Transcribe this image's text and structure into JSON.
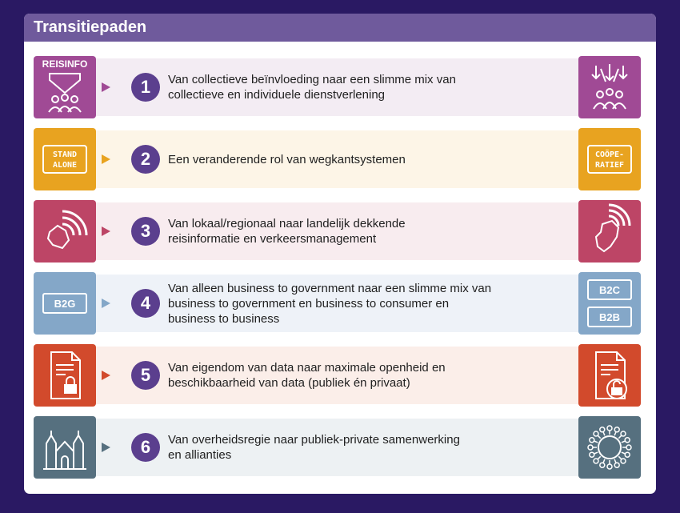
{
  "title": "Transitiepaden",
  "rows": [
    {
      "number": "1",
      "text": "Van collectieve beïnvloeding naar een slimme mix van\ncollectieve en individuele dienstverlening",
      "left_label": "REISINFO",
      "right_label": "",
      "tile_color": "#a04a95",
      "band_color": "#f3ecf3",
      "left_icon": "crowd-down-arrow-icon",
      "right_icon": "crowd-multi-arrow-icon"
    },
    {
      "number": "2",
      "text": "Een veranderende rol van wegkantsystemen",
      "left_label": "STAND\nALONE",
      "right_label": "COÖPE-\nRATIEF",
      "tile_color": "#e8a320",
      "band_color": "#fdf5e7",
      "left_icon": "stand-alone-sign-icon",
      "right_icon": "cooperatief-sign-icon"
    },
    {
      "number": "3",
      "text": "Van lokaal/regionaal naar landelijk dekkende\nreisinformatie en verkeersmanagement",
      "left_label": "",
      "right_label": "",
      "tile_color": "#bd4566",
      "band_color": "#f8ecef",
      "left_icon": "region-signal-icon",
      "right_icon": "national-signal-icon"
    },
    {
      "number": "4",
      "text": "Van alleen business to government naar een slimme mix van\nbusiness to government en business to consumer en\nbusiness to business",
      "left_label": "B2G",
      "right_label_top": "B2C",
      "right_label_bottom": "B2B",
      "tile_color": "#84a7c8",
      "band_color": "#eef2f8",
      "left_icon": "b2g-badge-icon",
      "right_icon": "b2c-b2b-badge-icon"
    },
    {
      "number": "5",
      "text": "Van eigendom van data naar maximale openheid en\nbeschikbaarheid van data (publiek én privaat)",
      "left_label": "",
      "right_label": "",
      "tile_color": "#d24a2c",
      "band_color": "#fbeee9",
      "left_icon": "document-lock-icon",
      "right_icon": "document-unlock-icon"
    },
    {
      "number": "6",
      "text": "Van overheidsregie naar publiek-private samenwerking\nen allianties",
      "left_label": "",
      "right_label": "",
      "tile_color": "#56707f",
      "band_color": "#edf1f3",
      "left_icon": "government-building-icon",
      "right_icon": "alliance-circle-icon"
    }
  ],
  "arrow_color": "#7a6f99"
}
